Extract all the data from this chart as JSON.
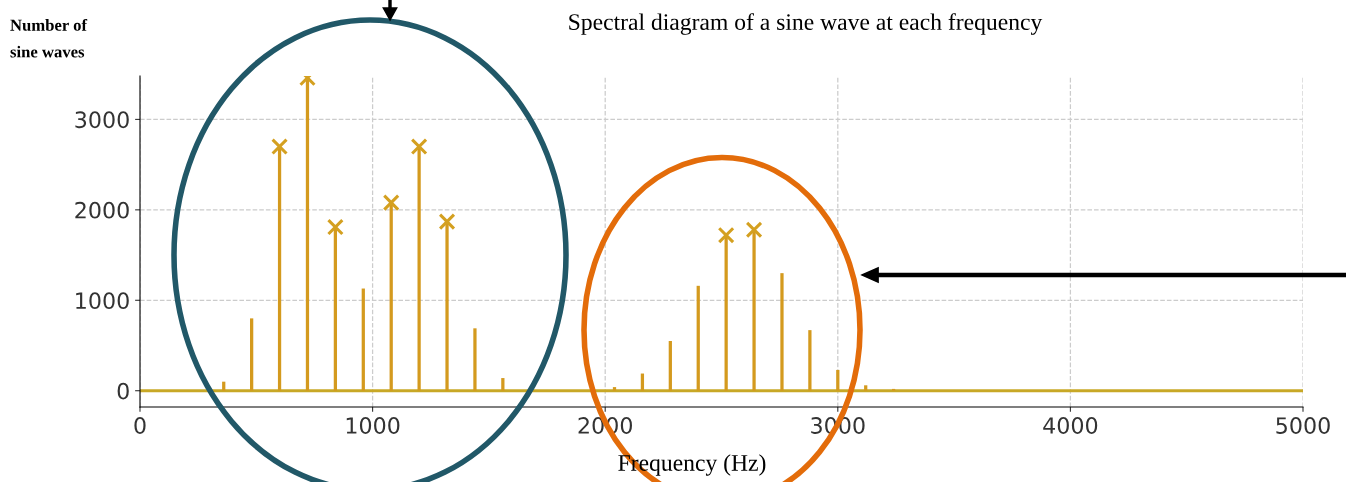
{
  "chart_data": {
    "type": "bar",
    "title": "Spectral diagram of a sine wave at each frequency",
    "xlabel": "Frequency (Hz)",
    "ylabel": "Number of\nsine waves",
    "series": [
      {
        "color": "#d49a1e",
        "x": [
          360,
          480,
          600,
          720,
          840,
          960,
          1080,
          1200,
          1320,
          1440,
          1560,
          2040,
          2160,
          2280,
          2400,
          2520,
          2640,
          2760,
          2880,
          3000,
          3120,
          3240
        ],
        "values": [
          100,
          800,
          2700,
          3460,
          1810,
          1130,
          2080,
          2700,
          1870,
          690,
          140,
          40,
          190,
          550,
          1160,
          1720,
          1780,
          1300,
          670,
          230,
          60,
          20
        ]
      },
      {
        "type": "scatter",
        "color": "#d4a020",
        "marker": "cross",
        "x": [
          600,
          720,
          840,
          1080,
          1200,
          1320,
          2520,
          2640
        ],
        "values": [
          2700,
          3460,
          1810,
          2080,
          2700,
          1870,
          1720,
          1780
        ]
      }
    ],
    "ref_lines": [
      {
        "axis": "y",
        "value": 0,
        "color": "#c8a826",
        "line_style": "solid"
      }
    ],
    "xlim": [
      0,
      5000
    ],
    "xticks": [
      0,
      1000,
      2000,
      3000,
      4000,
      5000
    ],
    "ylim": [
      -180,
      3480
    ],
    "yticks": [
      0,
      1000,
      2000,
      3000
    ],
    "grid": true,
    "line_style": "dashed"
  }
}
